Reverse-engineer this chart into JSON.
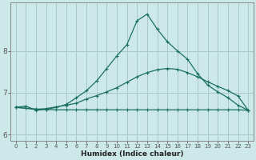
{
  "xlabel": "Humidex (Indice chaleur)",
  "background_color": "#cce8e8",
  "grid_color": "#aac8c8",
  "line_color": "#1a7060",
  "xlim": [
    -0.5,
    23.5
  ],
  "ylim": [
    5.85,
    9.15
  ],
  "yticks": [
    6,
    7,
    8
  ],
  "xticks": [
    0,
    1,
    2,
    3,
    4,
    5,
    6,
    7,
    8,
    9,
    10,
    11,
    12,
    13,
    14,
    15,
    16,
    17,
    18,
    19,
    20,
    21,
    22,
    23
  ],
  "line1_x": [
    0,
    1,
    2,
    3,
    4,
    5,
    6,
    7,
    8,
    9,
    10,
    11,
    12,
    13,
    14,
    15,
    16,
    17,
    18,
    19,
    20,
    21,
    22,
    23
  ],
  "line1_y": [
    6.65,
    6.63,
    6.61,
    6.6,
    6.59,
    6.59,
    6.59,
    6.59,
    6.59,
    6.59,
    6.59,
    6.59,
    6.59,
    6.59,
    6.59,
    6.59,
    6.59,
    6.59,
    6.59,
    6.59,
    6.59,
    6.59,
    6.59,
    6.58
  ],
  "line2_x": [
    0,
    2,
    3,
    4,
    5,
    6,
    7,
    8,
    9,
    10,
    11,
    12,
    13,
    14,
    15,
    16,
    17,
    18,
    19,
    20,
    21,
    22,
    23
  ],
  "line2_y": [
    6.65,
    6.6,
    6.62,
    6.66,
    6.7,
    6.75,
    6.85,
    6.93,
    7.02,
    7.12,
    7.25,
    7.38,
    7.48,
    7.55,
    7.58,
    7.56,
    7.48,
    7.38,
    7.26,
    7.15,
    7.05,
    6.92,
    6.58
  ],
  "line3_x": [
    0,
    1,
    2,
    3,
    4,
    5,
    6,
    7,
    8,
    9,
    10,
    11,
    12,
    13,
    14,
    15,
    16,
    17,
    18,
    19,
    20,
    21,
    22,
    23
  ],
  "line3_y": [
    6.65,
    6.68,
    6.58,
    6.6,
    6.65,
    6.72,
    6.88,
    7.05,
    7.28,
    7.58,
    7.88,
    8.15,
    8.72,
    8.88,
    8.52,
    8.22,
    8.0,
    7.8,
    7.45,
    7.18,
    7.02,
    6.88,
    6.7,
    6.58
  ]
}
